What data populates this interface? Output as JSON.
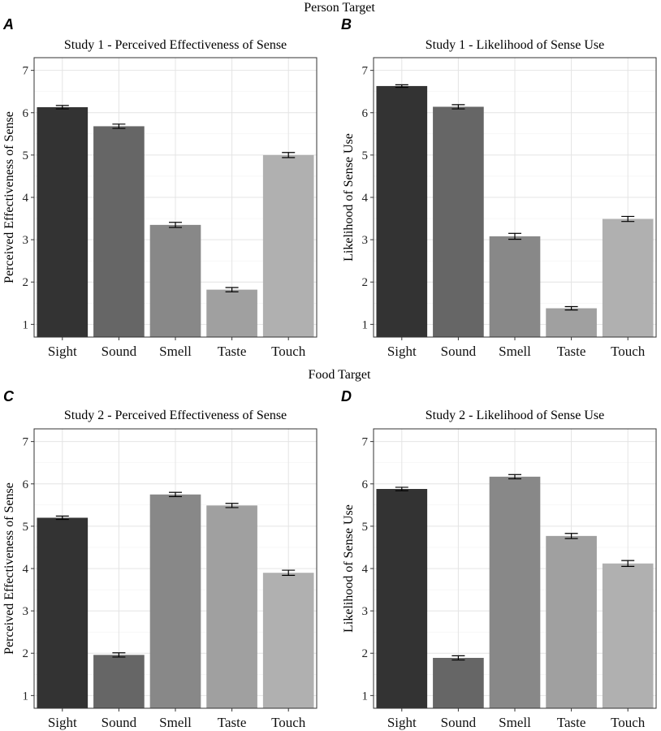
{
  "figure": {
    "section_titles": [
      "Person Target",
      "Food Target"
    ]
  },
  "chart_data": [
    {
      "panel": "A",
      "type": "bar",
      "title": "Study 1 - Perceived Effectiveness of Sense",
      "xlabel": "",
      "ylabel": "Perceived Effectiveness of Sense",
      "categories": [
        "Sight",
        "Sound",
        "Smell",
        "Taste",
        "Touch"
      ],
      "values": [
        6.13,
        5.68,
        3.35,
        1.82,
        5.0
      ],
      "error": [
        0.04,
        0.05,
        0.06,
        0.05,
        0.06
      ],
      "ylim": [
        0.7,
        7.3
      ],
      "yticks": [
        1,
        2,
        3,
        4,
        5,
        6,
        7
      ],
      "colors": [
        "#333333",
        "#666666",
        "#888888",
        "#a0a0a0",
        "#b0b0b0"
      ],
      "grid": true
    },
    {
      "panel": "B",
      "type": "bar",
      "title": "Study 1 - Likelihood of Sense Use",
      "xlabel": "",
      "ylabel": "Likelihood of Sense Use",
      "categories": [
        "Sight",
        "Sound",
        "Smell",
        "Taste",
        "Touch"
      ],
      "values": [
        6.63,
        6.14,
        3.08,
        1.38,
        3.49
      ],
      "error": [
        0.03,
        0.05,
        0.07,
        0.04,
        0.06
      ],
      "ylim": [
        0.7,
        7.3
      ],
      "yticks": [
        1,
        2,
        3,
        4,
        5,
        6,
        7
      ],
      "colors": [
        "#333333",
        "#666666",
        "#888888",
        "#a0a0a0",
        "#b0b0b0"
      ],
      "grid": true
    },
    {
      "panel": "C",
      "type": "bar",
      "title": "Study 2 - Perceived Effectiveness of Sense",
      "xlabel": "",
      "ylabel": "Perceived Effectiveness of Sense",
      "categories": [
        "Sight",
        "Sound",
        "Smell",
        "Taste",
        "Touch"
      ],
      "values": [
        5.2,
        1.96,
        5.75,
        5.49,
        3.9
      ],
      "error": [
        0.04,
        0.05,
        0.05,
        0.05,
        0.06
      ],
      "ylim": [
        0.7,
        7.3
      ],
      "yticks": [
        1,
        2,
        3,
        4,
        5,
        6,
        7
      ],
      "colors": [
        "#333333",
        "#666666",
        "#888888",
        "#a0a0a0",
        "#b0b0b0"
      ],
      "grid": true
    },
    {
      "panel": "D",
      "type": "bar",
      "title": "Study 2 - Likelihood of Sense Use",
      "xlabel": "",
      "ylabel": "Likelihood of Sense Use",
      "categories": [
        "Sight",
        "Sound",
        "Smell",
        "Taste",
        "Touch"
      ],
      "values": [
        5.88,
        1.89,
        6.17,
        4.77,
        4.12
      ],
      "error": [
        0.04,
        0.05,
        0.05,
        0.06,
        0.07
      ],
      "ylim": [
        0.7,
        7.3
      ],
      "yticks": [
        1,
        2,
        3,
        4,
        5,
        6,
        7
      ],
      "colors": [
        "#333333",
        "#666666",
        "#888888",
        "#a0a0a0",
        "#b0b0b0"
      ],
      "grid": true
    }
  ]
}
